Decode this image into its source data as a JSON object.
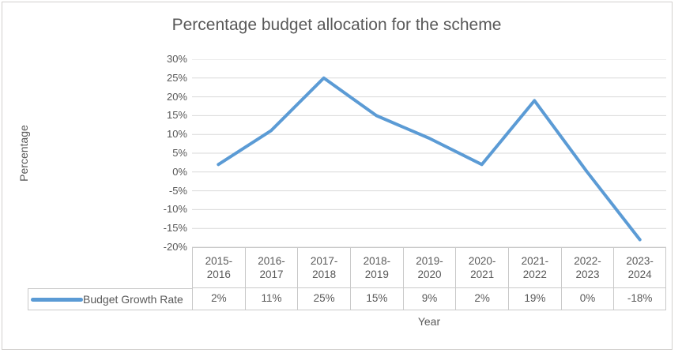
{
  "chart": {
    "title": "Percentage budget allocation for the scheme",
    "y_axis_title": "Percentage",
    "x_axis_title": "Year",
    "legend_label": "Budget Growth Rate"
  },
  "colors": {
    "series_line": "#5B9BD5",
    "text": "#595959",
    "gridline": "#D9D9D9",
    "table_border": "#C9C9C9"
  },
  "chart_data": {
    "type": "line",
    "title": "Percentage budget allocation for the scheme",
    "xlabel": "Year",
    "ylabel": "Percentage",
    "categories": [
      "2015-2016",
      "2016-2017",
      "2017-2018",
      "2018-2019",
      "2019-2020",
      "2020-2021",
      "2021-2022",
      "2022-2023",
      "2023-2024"
    ],
    "series": [
      {
        "name": "Budget Growth Rate",
        "values": [
          2,
          11,
          25,
          15,
          9,
          2,
          19,
          0,
          -18
        ]
      }
    ],
    "value_labels": [
      "2%",
      "11%",
      "25%",
      "15%",
      "9%",
      "2%",
      "19%",
      "0%",
      "-18%"
    ],
    "ylim": [
      -20,
      30
    ],
    "ytick_step": 5,
    "ytick_labels": [
      "30%",
      "25%",
      "20%",
      "15%",
      "10%",
      "5%",
      "0%",
      "-5%",
      "-10%",
      "-15%",
      "-20%"
    ],
    "grid": true,
    "legend_position": "data-table-left",
    "show_data_table": true
  }
}
